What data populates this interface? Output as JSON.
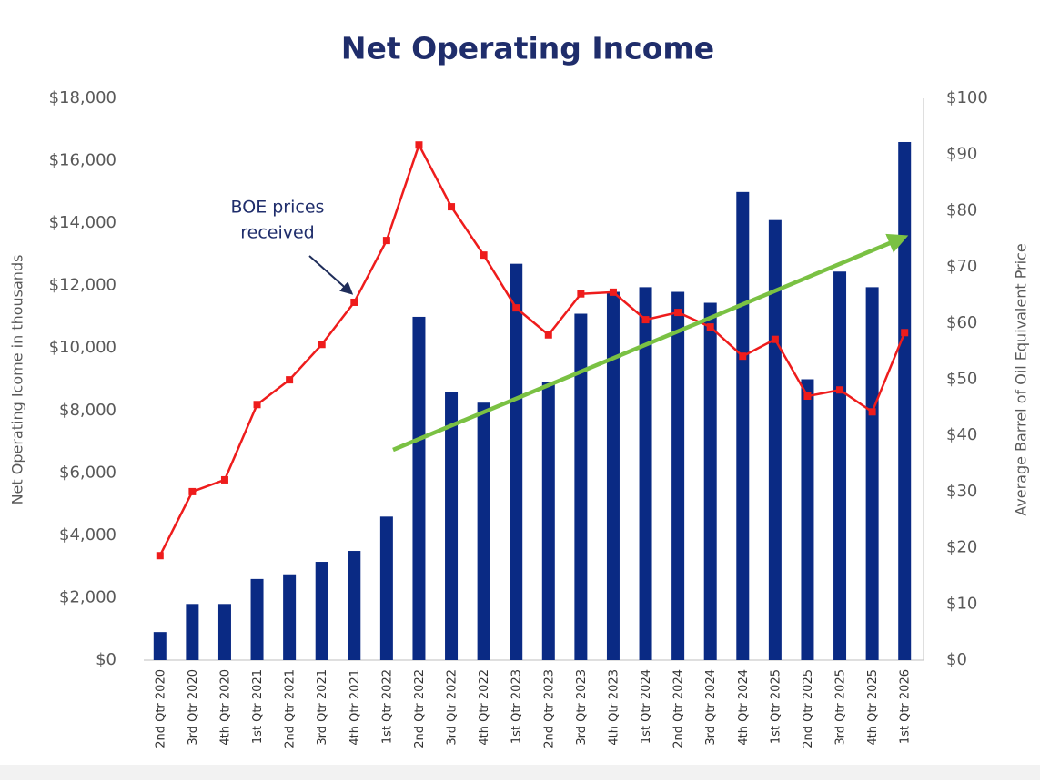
{
  "chart_data": {
    "type": "bar-line",
    "title": "Net Operating Income",
    "y_label": "Net Operating Icome in thousands",
    "y2_label": "Average Barrel of Oil Equivalent Price",
    "annotation": [
      "BOE prices",
      "received"
    ],
    "categories": [
      "2nd Qtr 2020",
      "3rd Qtr 2020",
      "4th Qtr 2020",
      "1st Qtr 2021",
      "2nd Qtr 2021",
      "3rd Qtr 2021",
      "4th Qtr 2021",
      "1st Qtr 2022",
      "2nd Qtr 2022",
      "3rd Qtr 2022",
      "4th Qtr 2022",
      "1st Qtr 2023",
      "2nd Qtr 2023",
      "3rd Qtr 2023",
      "4th Qtr 2023",
      "1st Qtr 2024",
      "2nd Qtr 2024",
      "3rd Qtr 2024",
      "4th Qtr 2024",
      "1st Qtr 2025",
      "2nd Qtr 2025",
      "3rd Qtr 2025",
      "4th Qtr 2025",
      "1st Qtr 2026"
    ],
    "series": [
      {
        "type": "bar",
        "color": "#0a2a84",
        "values": [
          900,
          1800,
          1800,
          2600,
          2750,
          3150,
          3500,
          4600,
          11000,
          8600,
          8250,
          12700,
          8900,
          11100,
          11800,
          11950,
          11800,
          11450,
          15000,
          14100,
          9000,
          12450,
          11950,
          16600
        ]
      },
      {
        "type": "line",
        "axis": "y2",
        "color": "#ee1c1c",
        "values": [
          18.6,
          30,
          32.1,
          45.5,
          49.9,
          56.2,
          63.7,
          74.7,
          91.7,
          80.7,
          72.1,
          62.7,
          57.9,
          65.2,
          65.5,
          60.6,
          61.9,
          59.3,
          54.1,
          57.1,
          47.0,
          48.1,
          44.2,
          58.3
        ]
      }
    ],
    "ylim": [
      0,
      18000
    ],
    "yticks": [
      {
        "value": 0,
        "label": "$0"
      },
      {
        "value": 2000,
        "label": "$2,000"
      },
      {
        "value": 4000,
        "label": "$4,000"
      },
      {
        "value": 6000,
        "label": "$6,000"
      },
      {
        "value": 8000,
        "label": "$8,000"
      },
      {
        "value": 10000,
        "label": "$10,000"
      },
      {
        "value": 12000,
        "label": "$12,000"
      },
      {
        "value": 14000,
        "label": "$14,000"
      },
      {
        "value": 16000,
        "label": "$16,000"
      },
      {
        "value": 18000,
        "label": "$18,000"
      }
    ],
    "y2lim": [
      0,
      100
    ],
    "y2ticks": [
      {
        "value": 0,
        "label": "$0"
      },
      {
        "value": 10,
        "label": "$10"
      },
      {
        "value": 20,
        "label": "$20"
      },
      {
        "value": 30,
        "label": "$30"
      },
      {
        "value": 40,
        "label": "$40"
      },
      {
        "value": 50,
        "label": "$50"
      },
      {
        "value": 60,
        "label": "$60"
      },
      {
        "value": 70,
        "label": "$70"
      },
      {
        "value": 80,
        "label": "$80"
      },
      {
        "value": 90,
        "label": "$90"
      },
      {
        "value": 100,
        "label": "$100"
      }
    ]
  }
}
